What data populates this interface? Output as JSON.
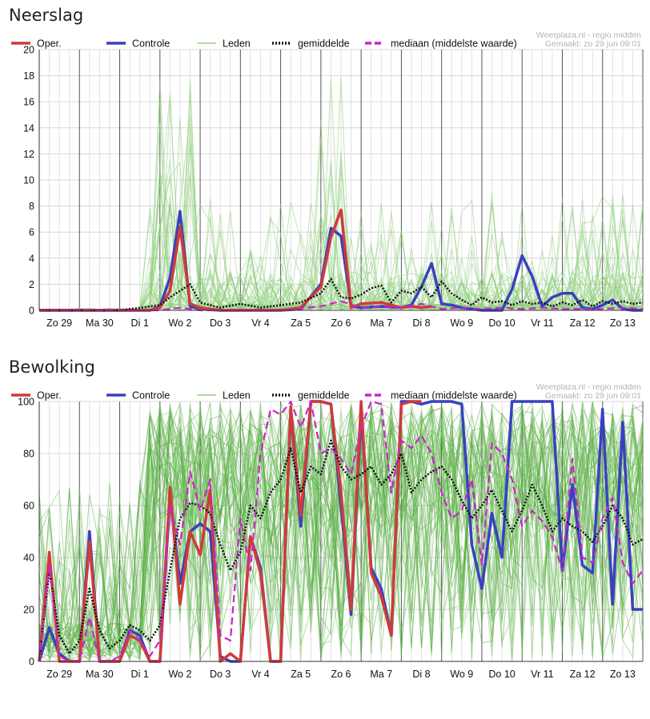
{
  "chart_data": [
    {
      "id": "neerslag",
      "type": "line",
      "title": "Neerslag",
      "source": "Weerplaza.nl - regio midden",
      "created": "Gemaakt: zo 29 jun 09:01",
      "ylim": [
        0,
        20
      ],
      "yticks": [
        "0",
        "2",
        "4",
        "6",
        "8",
        "10",
        "12",
        "14",
        "16",
        "18",
        "20"
      ],
      "xticks": [
        "Zo 29",
        "Ma 30",
        "Di 1",
        "Wo 2",
        "Do 3",
        "Vr 4",
        "Za 5",
        "Zo 6",
        "Ma 7",
        "Di 8",
        "Wo 9",
        "Do 10",
        "Vr 11",
        "Za 12",
        "Zo 13"
      ],
      "xlim": [
        0,
        15
      ],
      "grid": true,
      "legend_position": "top-left",
      "legend": [
        {
          "label": "Oper.",
          "color": "#d03a3a",
          "style": "solid"
        },
        {
          "label": "Controle",
          "color": "#3a40c0",
          "style": "solid"
        },
        {
          "label": "Leden",
          "color": "#8fcf7e",
          "style": "solid"
        },
        {
          "label": "gemiddelde",
          "color": "#111111",
          "style": "dotted"
        },
        {
          "label": "mediaan (middelste waarde)",
          "color": "#cc22cc",
          "style": "dashed"
        }
      ],
      "series": [
        {
          "name": "Controle",
          "color": "#3a40c0",
          "x": [
            0,
            1,
            2,
            2.75,
            3,
            3.25,
            3.5,
            3.75,
            4,
            4.5,
            5,
            6,
            6.5,
            7,
            7.25,
            7.5,
            7.75,
            8,
            8.5,
            9,
            9.25,
            9.5,
            9.75,
            10,
            10.25,
            10.5,
            11,
            11.5,
            11.75,
            12,
            12.25,
            12.5,
            12.75,
            13,
            13.25,
            13.5,
            13.75,
            14,
            14.25,
            14.5,
            14.75,
            15
          ],
          "y": [
            0,
            0,
            0,
            0,
            0.3,
            2.5,
            7.6,
            0.3,
            0.1,
            0,
            0,
            0,
            0.1,
            2.0,
            6.3,
            5.7,
            0.3,
            0.2,
            0.3,
            0.2,
            0.4,
            1.8,
            3.6,
            0.5,
            0.4,
            0.2,
            0,
            0,
            1.6,
            4.2,
            2.6,
            0.3,
            1.0,
            1.3,
            1.3,
            0.2,
            0.1,
            0.4,
            0.8,
            0.1,
            0,
            0
          ]
        },
        {
          "name": "Oper.",
          "color": "#d03a3a",
          "x": [
            0,
            1,
            2,
            2.75,
            3,
            3.25,
            3.5,
            3.75,
            4,
            4.5,
            5,
            6,
            6.5,
            7,
            7.25,
            7.5,
            7.75,
            8,
            8.5,
            9,
            9.25,
            9.5,
            9.75
          ],
          "y": [
            0,
            0,
            0,
            0,
            0.2,
            1.5,
            6.4,
            0.5,
            0.2,
            0,
            0,
            0,
            0.2,
            1.8,
            5.6,
            7.7,
            0.2,
            0.5,
            0.6,
            0.2,
            0.3,
            0.2,
            0.3
          ]
        },
        {
          "name": "gemiddelde",
          "color": "#111111",
          "x": [
            0,
            2,
            3,
            3.25,
            3.5,
            3.75,
            4,
            4.5,
            5,
            5.5,
            6,
            6.5,
            7,
            7.25,
            7.5,
            7.75,
            8,
            8.25,
            8.5,
            8.75,
            9,
            9.25,
            9.5,
            9.75,
            10,
            10.25,
            10.5,
            10.75,
            11,
            11.25,
            11.5,
            11.75,
            12,
            12.25,
            12.5,
            12.75,
            13,
            13.25,
            13.5,
            13.75,
            14,
            14.25,
            14.5,
            14.75,
            15
          ],
          "y": [
            0,
            0,
            0.4,
            1.0,
            1.5,
            2.0,
            0.6,
            0.2,
            0.5,
            0.2,
            0.4,
            0.6,
            1.3,
            2.4,
            1.0,
            0.9,
            1.2,
            1.7,
            1.9,
            0.6,
            1.5,
            1.3,
            1.8,
            1.0,
            2.2,
            1.3,
            0.8,
            0.4,
            1.0,
            0.6,
            0.7,
            0.4,
            0.7,
            0.5,
            0.6,
            0.3,
            0.6,
            0.4,
            0.8,
            0.3,
            0.7,
            0.5,
            0.7,
            0.5,
            0.6
          ]
        },
        {
          "name": "mediaan (middelste waarde)",
          "color": "#cc22cc",
          "x": [
            0,
            2,
            3,
            3.5,
            4,
            5,
            6,
            7,
            7.5,
            8,
            8.5,
            9,
            9.5,
            10,
            10.5,
            11,
            11.5,
            12,
            12.5,
            13,
            13.5,
            14,
            14.5,
            15
          ],
          "y": [
            0,
            0,
            0,
            0.2,
            0,
            0,
            0,
            0.3,
            0.7,
            0.2,
            0.3,
            0.2,
            0.5,
            0.1,
            0.2,
            0.1,
            0.2,
            0.1,
            0.2,
            0.1,
            0.1,
            0.1,
            0.2,
            0.1
          ]
        }
      ]
    },
    {
      "id": "bewolking",
      "type": "line",
      "title": "Bewolking",
      "source": "Weerplaza.nl - regio midden",
      "created": "Gemaakt: zo 29 jun 09:01",
      "ylim": [
        0,
        100
      ],
      "yticks": [
        "0",
        "20",
        "40",
        "60",
        "80",
        "100"
      ],
      "xticks": [
        "Zo 29",
        "Ma 30",
        "Di 1",
        "Wo 2",
        "Do 3",
        "Vr 4",
        "Za 5",
        "Zo 6",
        "Ma 7",
        "Di 8",
        "Wo 9",
        "Do 10",
        "Vr 11",
        "Za 12",
        "Zo 13"
      ],
      "xlim": [
        0,
        15
      ],
      "grid": true,
      "legend_position": "top-left",
      "legend": [
        {
          "label": "Oper.",
          "color": "#d03a3a",
          "style": "solid"
        },
        {
          "label": "Controle",
          "color": "#3a40c0",
          "style": "solid"
        },
        {
          "label": "Leden",
          "color": "#8fcf7e",
          "style": "solid"
        },
        {
          "label": "gemiddelde",
          "color": "#111111",
          "style": "dotted"
        },
        {
          "label": "mediaan (middelste waarde)",
          "color": "#cc22cc",
          "style": "dashed"
        }
      ],
      "series": [
        {
          "name": "Controle",
          "color": "#3a40c0",
          "x": [
            0,
            0.25,
            0.5,
            0.75,
            1,
            1.25,
            1.5,
            1.75,
            2,
            2.25,
            2.5,
            2.75,
            3,
            3.25,
            3.5,
            3.75,
            4,
            4.25,
            4.5,
            4.75,
            5,
            5.25,
            5.5,
            5.75,
            6,
            6.25,
            6.5,
            6.75,
            7,
            7.25,
            7.5,
            7.75,
            8,
            8.25,
            8.5,
            8.75,
            9,
            9.25,
            9.5,
            9.75,
            10,
            10.25,
            10.5,
            10.75,
            11,
            11.25,
            11.5,
            11.75,
            12,
            12.25,
            12.5,
            12.75,
            13,
            13.25,
            13.5,
            13.75,
            14,
            14.25,
            14.5,
            14.75,
            15
          ],
          "y": [
            0,
            13,
            3,
            0,
            0,
            50,
            0,
            0,
            0,
            12,
            10,
            0,
            0,
            64,
            30,
            50,
            53,
            50,
            2,
            0,
            0,
            48,
            36,
            0,
            0,
            97,
            52,
            100,
            100,
            99,
            60,
            18,
            97,
            36,
            28,
            10,
            100,
            100,
            99,
            100,
            100,
            100,
            99,
            45,
            28,
            57,
            40,
            100,
            100,
            100,
            100,
            100,
            35,
            68,
            37,
            34,
            97,
            22,
            92,
            20,
            20
          ]
        },
        {
          "name": "Oper.",
          "color": "#d03a3a",
          "x": [
            0,
            0.25,
            0.5,
            0.75,
            1,
            1.25,
            1.5,
            1.75,
            2,
            2.25,
            2.5,
            2.75,
            3,
            3.25,
            3.5,
            3.75,
            4,
            4.25,
            4.5,
            4.75,
            5,
            5.25,
            5.5,
            5.75,
            6,
            6.25,
            6.5,
            6.75,
            7,
            7.25,
            7.5,
            7.75,
            8,
            8.25,
            8.5,
            8.75,
            9,
            9.25,
            9.5
          ],
          "y": [
            0,
            42,
            0,
            0,
            0,
            46,
            0,
            0,
            0,
            10,
            8,
            0,
            0,
            67,
            22,
            50,
            41,
            66,
            0,
            3,
            0,
            48,
            34,
            0,
            0,
            98,
            56,
            100,
            100,
            99,
            65,
            20,
            100,
            34,
            25,
            10,
            99,
            100,
            100
          ]
        },
        {
          "name": "gemiddelde",
          "color": "#111111",
          "x": [
            0,
            0.25,
            0.5,
            0.75,
            1,
            1.25,
            1.5,
            1.75,
            2,
            2.25,
            2.5,
            2.75,
            3,
            3.25,
            3.5,
            3.75,
            4,
            4.25,
            4.5,
            4.75,
            5,
            5.25,
            5.5,
            5.75,
            6,
            6.25,
            6.5,
            6.75,
            7,
            7.25,
            7.5,
            7.75,
            8,
            8.25,
            8.5,
            8.75,
            9,
            9.25,
            9.5,
            9.75,
            10,
            10.25,
            10.5,
            10.75,
            11,
            11.25,
            11.5,
            11.75,
            12,
            12.25,
            12.5,
            12.75,
            13,
            13.25,
            13.5,
            13.75,
            14,
            14.25,
            14.5,
            14.75,
            15
          ],
          "y": [
            0,
            35,
            10,
            3,
            8,
            28,
            12,
            5,
            8,
            14,
            12,
            8,
            14,
            35,
            55,
            61,
            60,
            57,
            45,
            35,
            42,
            60,
            55,
            65,
            70,
            82,
            65,
            75,
            72,
            85,
            75,
            70,
            72,
            75,
            68,
            72,
            80,
            65,
            70,
            73,
            75,
            70,
            62,
            55,
            60,
            66,
            58,
            50,
            58,
            68,
            60,
            50,
            55,
            52,
            50,
            46,
            52,
            60,
            55,
            45,
            47
          ]
        },
        {
          "name": "mediaan (middelste waarde)",
          "color": "#cc22cc",
          "x": [
            0,
            0.25,
            0.5,
            0.75,
            1,
            1.25,
            1.5,
            1.75,
            2,
            2.25,
            2.5,
            2.75,
            3,
            3.25,
            3.5,
            3.75,
            4,
            4.25,
            4.5,
            4.75,
            5,
            5.25,
            5.5,
            5.75,
            6,
            6.25,
            6.5,
            6.75,
            7,
            7.25,
            7.5,
            7.75,
            8,
            8.25,
            8.5,
            8.75,
            9,
            9.25,
            9.5,
            9.75,
            10,
            10.25,
            10.5,
            10.75,
            11,
            11.25,
            11.5,
            11.75,
            12,
            12.25,
            12.5,
            12.75,
            13,
            13.25,
            13.5,
            13.75,
            14,
            14.25,
            14.5,
            14.75,
            15
          ],
          "y": [
            0,
            37,
            2,
            0,
            0,
            17,
            0,
            0,
            2,
            12,
            8,
            2,
            8,
            60,
            45,
            73,
            58,
            70,
            10,
            8,
            55,
            35,
            80,
            97,
            95,
            100,
            90,
            100,
            80,
            82,
            78,
            72,
            90,
            100,
            99,
            65,
            85,
            82,
            87,
            80,
            65,
            55,
            58,
            70,
            37,
            84,
            80,
            70,
            52,
            58,
            54,
            48,
            35,
            78,
            40,
            38,
            55,
            63,
            38,
            30,
            35
          ]
        }
      ]
    }
  ]
}
